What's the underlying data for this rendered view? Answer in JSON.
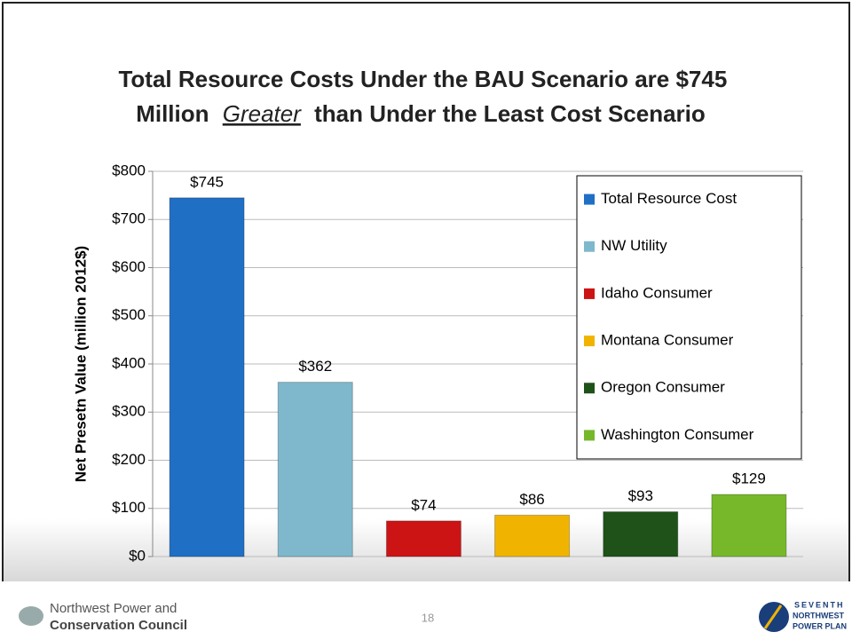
{
  "chart_data": {
    "type": "bar",
    "title": [
      "Total Resource Costs Under the BAU Scenario are $745",
      "Million",
      "Greater",
      "than Under the Least Cost Scenario"
    ],
    "y_label": "Net Presetn Value (million 2012$)",
    "categories": [
      null
    ],
    "series": [
      {
        "name": "Total Resource Cost",
        "color": "#1f6fc5",
        "values": [
          745
        ],
        "value_labels": [
          "$745"
        ]
      },
      {
        "name": "NW Utility",
        "color": "#7fb8cc",
        "values": [
          362
        ],
        "value_labels": [
          "$362"
        ]
      },
      {
        "name": "Idaho Consumer",
        "color": "#cc1414",
        "values": [
          74
        ],
        "value_labels": [
          "$74"
        ]
      },
      {
        "name": "Montana Consumer",
        "color": "#f0b400",
        "values": [
          86
        ],
        "value_labels": [
          "$86"
        ]
      },
      {
        "name": "Oregon Consumer",
        "color": "#1e5218",
        "values": [
          93
        ],
        "value_labels": [
          "$93"
        ]
      },
      {
        "name": "Washington Consumer",
        "color": "#76b82a",
        "values": [
          129
        ],
        "value_labels": [
          "$129"
        ]
      }
    ],
    "ylim": [
      0,
      800
    ],
    "yticks": [
      {
        "value": 0,
        "label": "$0"
      },
      {
        "value": 100,
        "label": "$100"
      },
      {
        "value": 200,
        "label": "$200"
      },
      {
        "value": 300,
        "label": "$300"
      },
      {
        "value": 400,
        "label": "$400"
      },
      {
        "value": 500,
        "label": "$500"
      },
      {
        "value": 600,
        "label": "$600"
      },
      {
        "value": 700,
        "label": "$700"
      },
      {
        "value": 800,
        "label": "$800"
      }
    ],
    "grid": true,
    "legend": "top-right"
  },
  "footer": {
    "org": [
      "Northwest Power and",
      "Conservation Council"
    ],
    "page": "18",
    "logo": [
      "SEVENTH",
      "NORTHWEST",
      "POWER PLAN"
    ]
  }
}
